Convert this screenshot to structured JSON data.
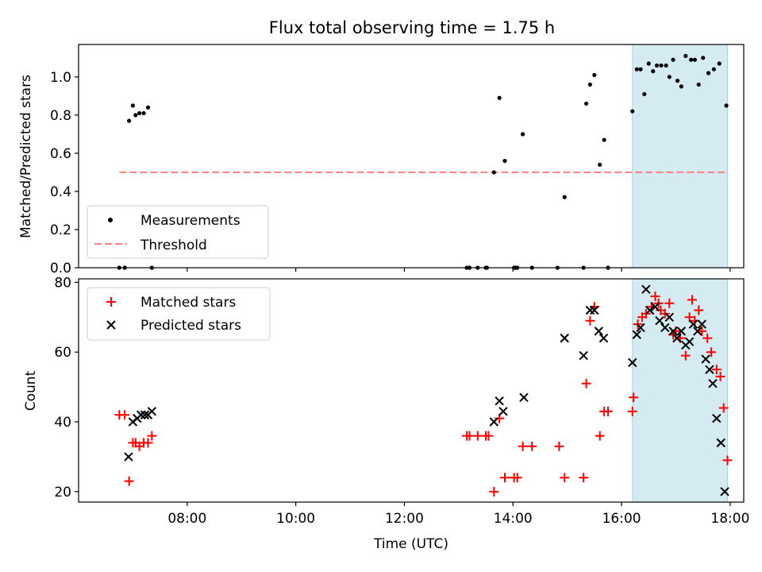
{
  "chart_data": [
    {
      "type": "scatter",
      "title": "Flux total observing time = 1.75 h",
      "xlabel": "",
      "ylabel": "Matched/Predicted stars",
      "ylim": [
        0,
        1.17
      ],
      "yticks": [
        0.0,
        0.2,
        0.4,
        0.6,
        0.8,
        1.0
      ],
      "ytick_labels": [
        "0.0",
        "0.2",
        "0.4",
        "0.6",
        "0.8",
        "1.0"
      ],
      "xlim_hours": [
        6.0,
        18.25
      ],
      "shaded_region_hours": [
        16.2,
        17.95
      ],
      "shade_color": "#d4ebf1",
      "legend_position": "lower-left",
      "threshold": {
        "name": "Threshold",
        "value": 0.5,
        "x_range_hours": [
          6.75,
          17.9
        ],
        "color": "#ff7f7f"
      },
      "series": [
        {
          "name": "Measurements",
          "marker": "dot",
          "color": "#000000",
          "x_hours": [
            6.75,
            6.85,
            6.93,
            7.0,
            7.05,
            7.12,
            7.2,
            7.28,
            7.35,
            13.15,
            13.2,
            13.35,
            13.5,
            13.52,
            13.65,
            13.75,
            13.85,
            14.02,
            14.05,
            14.08,
            14.18,
            14.35,
            14.82,
            14.95,
            15.3,
            15.35,
            15.42,
            15.5,
            15.6,
            15.68,
            15.75,
            16.2,
            16.28,
            16.35,
            16.42,
            16.5,
            16.58,
            16.65,
            16.73,
            16.82,
            16.88,
            16.95,
            17.03,
            17.1,
            17.18,
            17.28,
            17.35,
            17.42,
            17.5,
            17.6,
            17.7,
            17.8,
            17.93
          ],
          "y": [
            0.0,
            0.0,
            0.77,
            0.85,
            0.8,
            0.81,
            0.81,
            0.84,
            0.0,
            0.0,
            0.0,
            0.0,
            0.0,
            0.0,
            0.5,
            0.89,
            0.56,
            0.0,
            0.0,
            0.0,
            0.7,
            0.0,
            0.0,
            0.37,
            0.0,
            0.86,
            0.96,
            1.01,
            0.54,
            0.67,
            0.0,
            0.82,
            1.04,
            1.04,
            0.91,
            1.07,
            1.03,
            1.06,
            1.06,
            1.06,
            1.0,
            1.09,
            0.98,
            0.95,
            1.11,
            1.09,
            1.09,
            0.96,
            1.1,
            1.02,
            1.04,
            1.07,
            0.85
          ]
        }
      ]
    },
    {
      "type": "scatter",
      "title": "",
      "xlabel": "Time (UTC)",
      "ylabel": "Count",
      "ylim": [
        17,
        81
      ],
      "yticks": [
        20,
        40,
        60,
        80
      ],
      "ytick_labels": [
        "20",
        "40",
        "60",
        "80"
      ],
      "xticks_hours": [
        8,
        10,
        12,
        14,
        16,
        18
      ],
      "xtick_labels": [
        "08:00",
        "10:00",
        "12:00",
        "14:00",
        "16:00",
        "18:00"
      ],
      "xlim_hours": [
        6.0,
        18.25
      ],
      "shaded_region_hours": [
        16.2,
        17.95
      ],
      "shade_color": "#d4ebf1",
      "legend_position": "upper-left",
      "series": [
        {
          "name": "Matched stars",
          "marker": "plus",
          "color": "#ff0000",
          "x_hours": [
            6.75,
            6.85,
            6.93,
            7.0,
            7.05,
            7.12,
            7.2,
            7.28,
            7.35,
            13.15,
            13.2,
            13.35,
            13.5,
            13.55,
            13.65,
            13.75,
            13.85,
            14.02,
            14.08,
            14.18,
            14.35,
            14.85,
            14.95,
            15.3,
            15.35,
            15.42,
            15.5,
            15.6,
            15.68,
            15.75,
            16.2,
            16.22,
            16.3,
            16.38,
            16.45,
            16.55,
            16.62,
            16.68,
            16.72,
            16.8,
            16.88,
            16.95,
            17.0,
            17.08,
            17.18,
            17.25,
            17.3,
            17.35,
            17.42,
            17.48,
            17.58,
            17.65,
            17.75,
            17.82,
            17.88,
            17.95
          ],
          "y": [
            42,
            42,
            23,
            34,
            34,
            33,
            34,
            34,
            36,
            36,
            36,
            36,
            36,
            36,
            20,
            41,
            24,
            24,
            24,
            33,
            33,
            33,
            24,
            24,
            51,
            69,
            73,
            36,
            43,
            43,
            43,
            47,
            68,
            70,
            71,
            73,
            76,
            74,
            72,
            71,
            74,
            65,
            66,
            64,
            59,
            70,
            75,
            69,
            72,
            66,
            64,
            60,
            55,
            53,
            44,
            29
          ]
        },
        {
          "name": "Predicted stars",
          "marker": "x",
          "color": "#000000",
          "x_hours": [
            6.92,
            7.0,
            7.08,
            7.15,
            7.22,
            7.28,
            7.35,
            13.65,
            13.75,
            13.82,
            14.2,
            14.95,
            15.3,
            15.42,
            15.5,
            15.58,
            15.67,
            16.2,
            16.28,
            16.35,
            16.45,
            16.52,
            16.62,
            16.7,
            16.8,
            16.88,
            16.95,
            17.02,
            17.1,
            17.18,
            17.25,
            17.32,
            17.4,
            17.48,
            17.55,
            17.62,
            17.68,
            17.75,
            17.83,
            17.9
          ],
          "y": [
            30,
            40,
            41,
            42,
            42,
            42,
            43,
            40,
            46,
            43,
            47,
            64,
            59,
            72,
            72,
            66,
            64,
            57,
            65,
            67,
            78,
            72,
            73,
            69,
            67,
            70,
            66,
            64,
            66,
            62,
            63,
            68,
            66,
            68,
            58,
            55,
            51,
            41,
            34,
            20
          ]
        }
      ]
    }
  ]
}
